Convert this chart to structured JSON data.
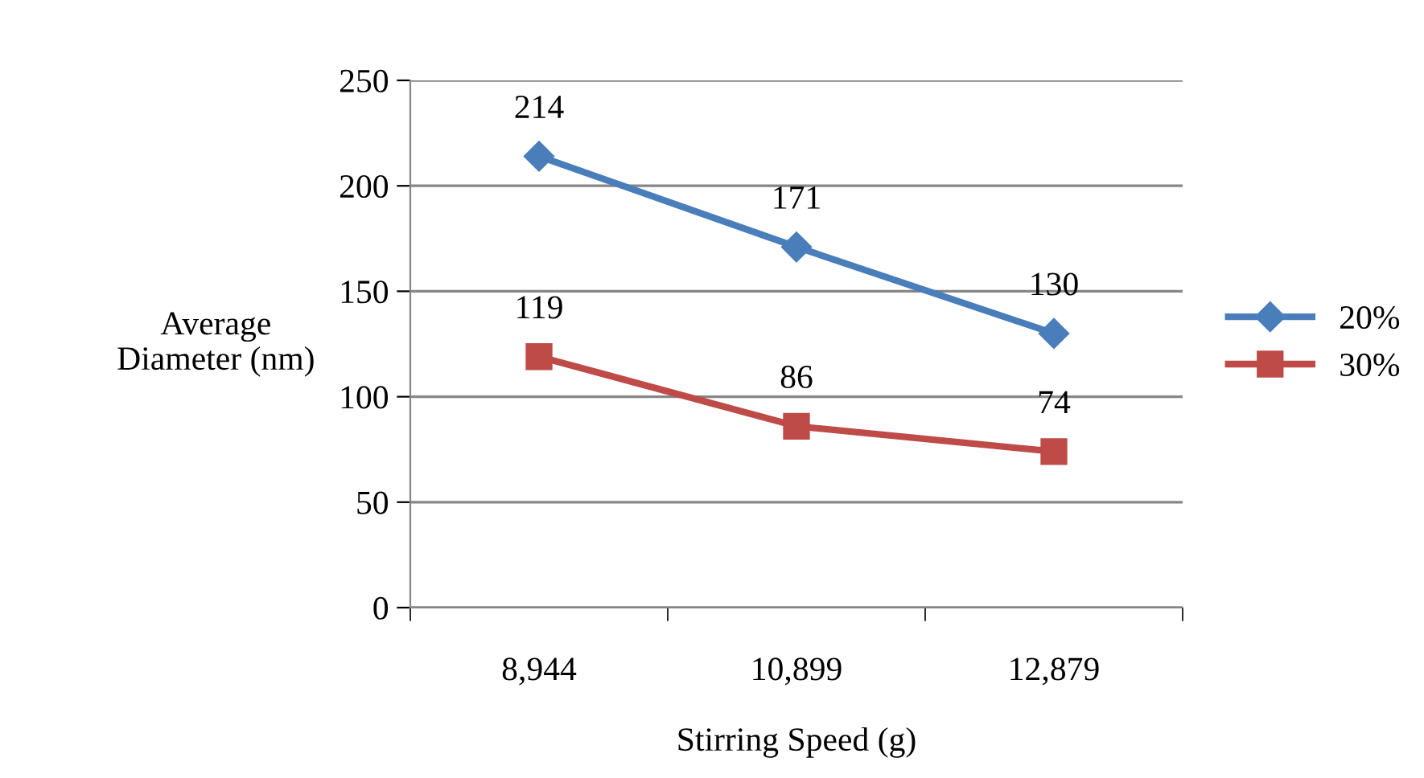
{
  "chart_data": {
    "type": "line",
    "xlabel": "Stirring Speed (g)",
    "ylabel": "Average\nDiameter (nm)",
    "categories": [
      "8,944",
      "10,899",
      "12,879"
    ],
    "series": [
      {
        "name": "20%",
        "color": "#4a7ebb",
        "marker": "diamond",
        "values": [
          214,
          171,
          130
        ]
      },
      {
        "name": "30%",
        "color": "#be4b48",
        "marker": "square",
        "values": [
          119,
          86,
          74
        ]
      }
    ],
    "ylim": [
      0,
      250
    ],
    "yticks": [
      0,
      50,
      100,
      150,
      200,
      250
    ],
    "grid": "y",
    "legend": "right",
    "data_labels": true,
    "line_style": "solid"
  }
}
